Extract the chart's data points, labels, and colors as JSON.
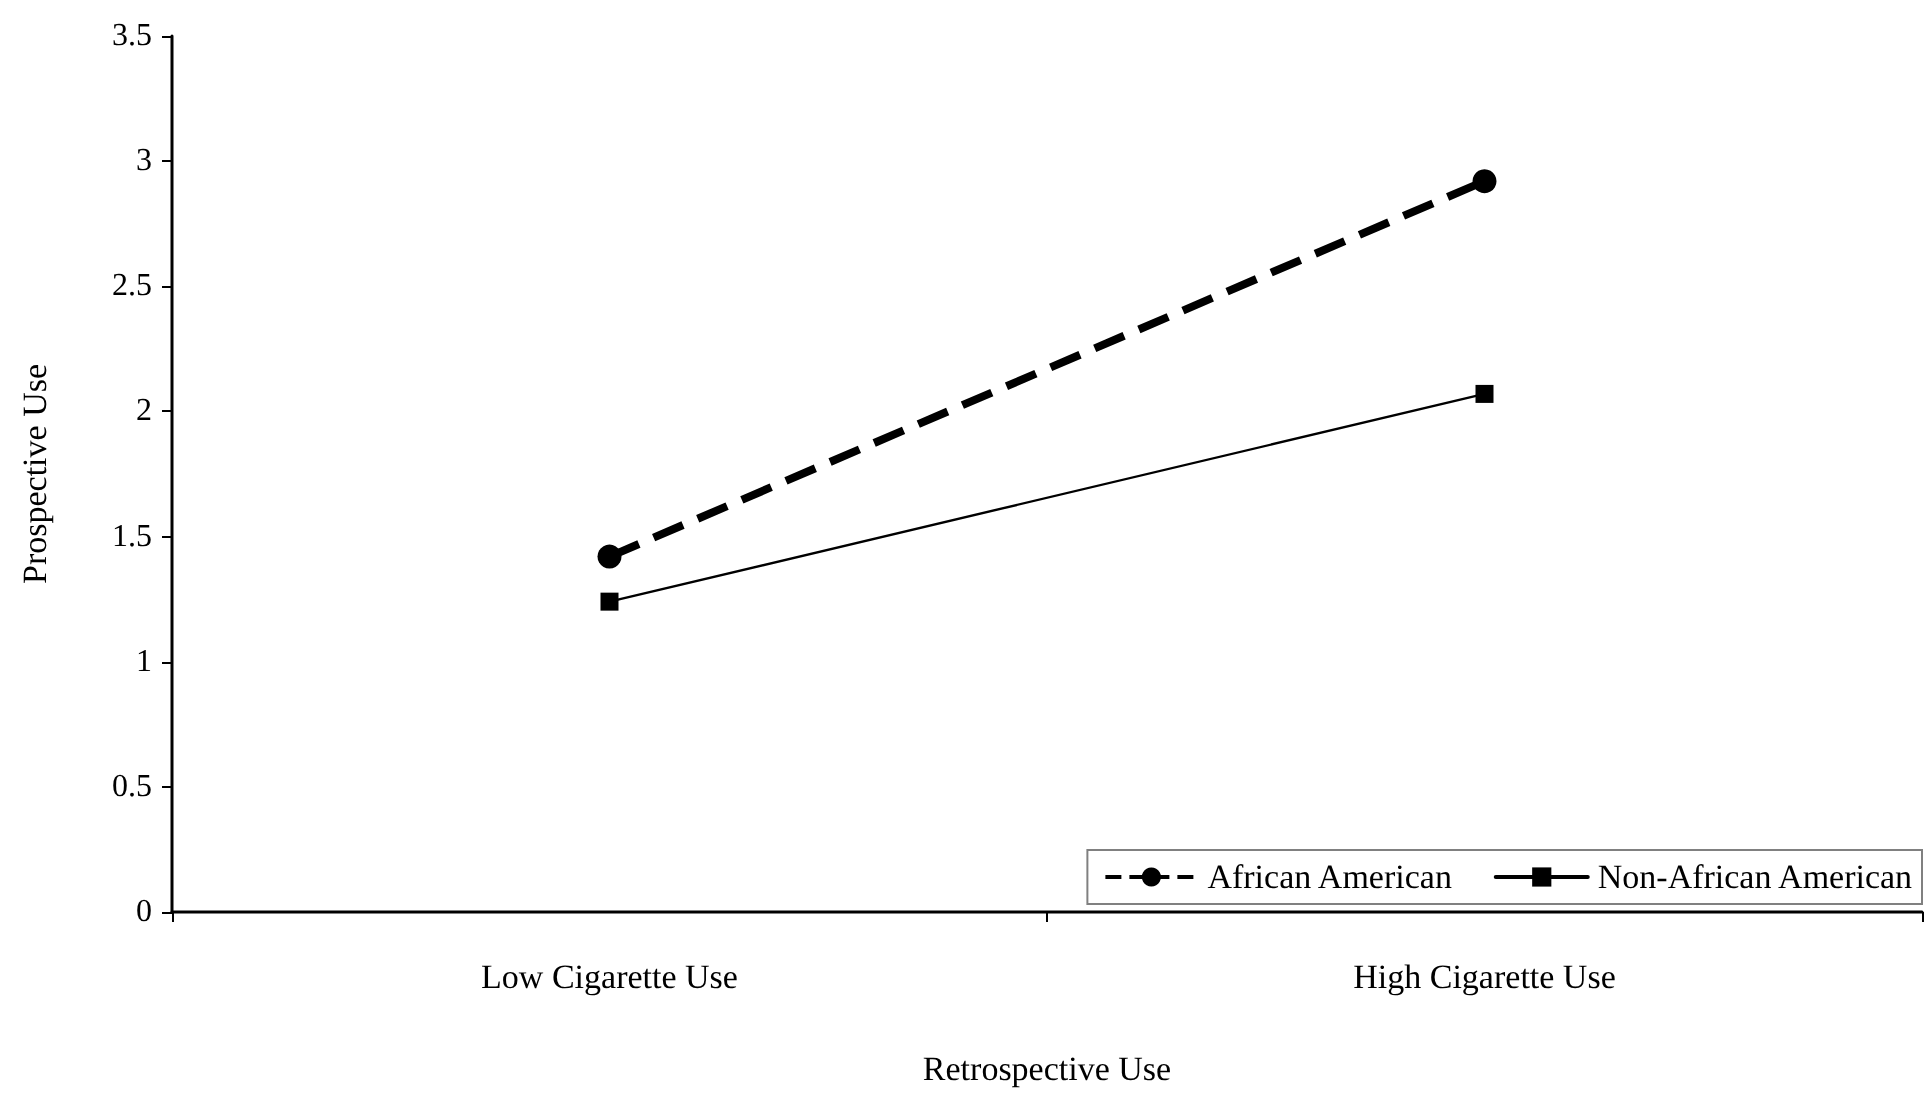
{
  "chart_data": {
    "type": "line",
    "xlabel": "Retrospective Use",
    "ylabel": "Prospective Use",
    "categories": [
      "Low Cigarette Use",
      "High Cigarette Use"
    ],
    "series": [
      {
        "name": "African American",
        "color": "#000000",
        "values": [
          1.42,
          2.92
        ],
        "marker": "circle",
        "line_style": "dashed"
      },
      {
        "name": "Non-African American",
        "color": "#000000",
        "values": [
          1.24,
          2.07
        ],
        "marker": "square",
        "line_style": "solid"
      }
    ],
    "ylim": [
      0,
      3.5
    ],
    "yticks": [
      0,
      0.5,
      1,
      1.5,
      2,
      2.5,
      3,
      3.5
    ],
    "grid": false,
    "legend": "bottom right"
  }
}
